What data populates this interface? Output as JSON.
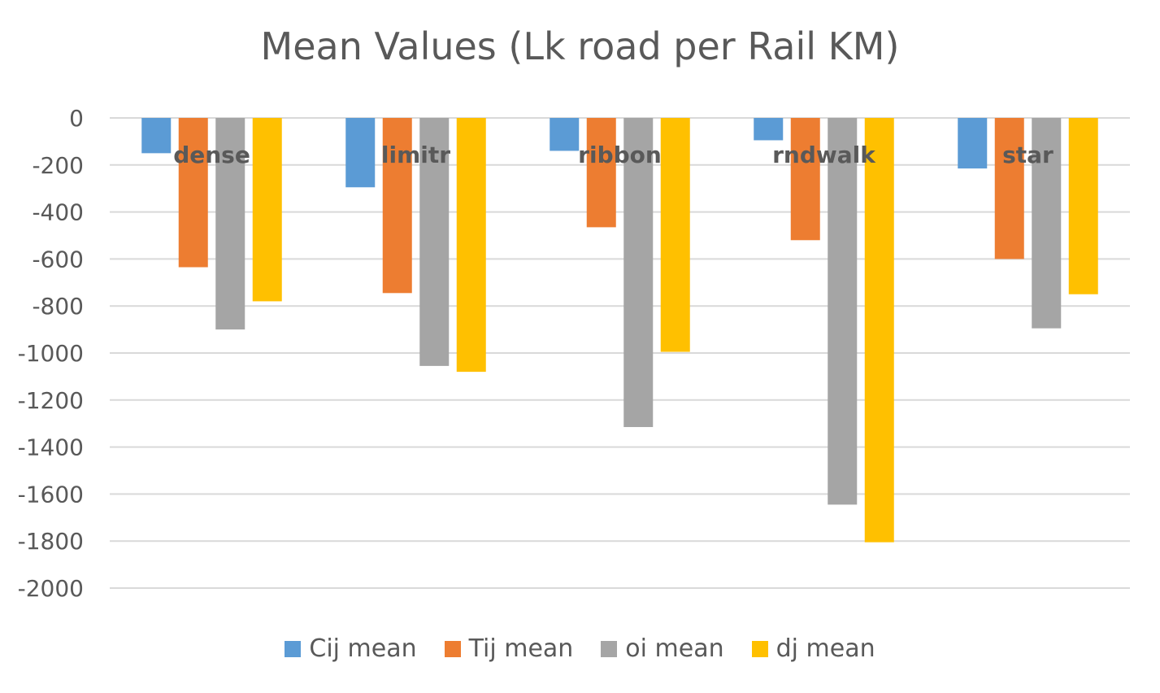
{
  "chart_data": {
    "type": "bar",
    "title": "Mean Values (Lk road per Rail KM)",
    "categories": [
      "dense",
      "limitr",
      "ribbon",
      "rndwalk",
      "star"
    ],
    "series": [
      {
        "name": "Cij mean",
        "color": "#5B9BD5",
        "values": [
          -150,
          -295,
          -140,
          -95,
          -215
        ]
      },
      {
        "name": "Tij mean",
        "color": "#ED7D31",
        "values": [
          -635,
          -745,
          -465,
          -520,
          -600
        ]
      },
      {
        "name": "oi mean",
        "color": "#A5A5A5",
        "values": [
          -900,
          -1055,
          -1315,
          -1645,
          -895
        ]
      },
      {
        "name": "dj mean",
        "color": "#FFC000",
        "values": [
          -780,
          -1080,
          -995,
          -1805,
          -750
        ]
      }
    ],
    "ylim": [
      -2000,
      0
    ],
    "yticks": [
      0,
      -200,
      -400,
      -600,
      -800,
      -1000,
      -1200,
      -1400,
      -1600,
      -1800,
      -2000
    ],
    "grid": true,
    "legend": "bottom"
  }
}
